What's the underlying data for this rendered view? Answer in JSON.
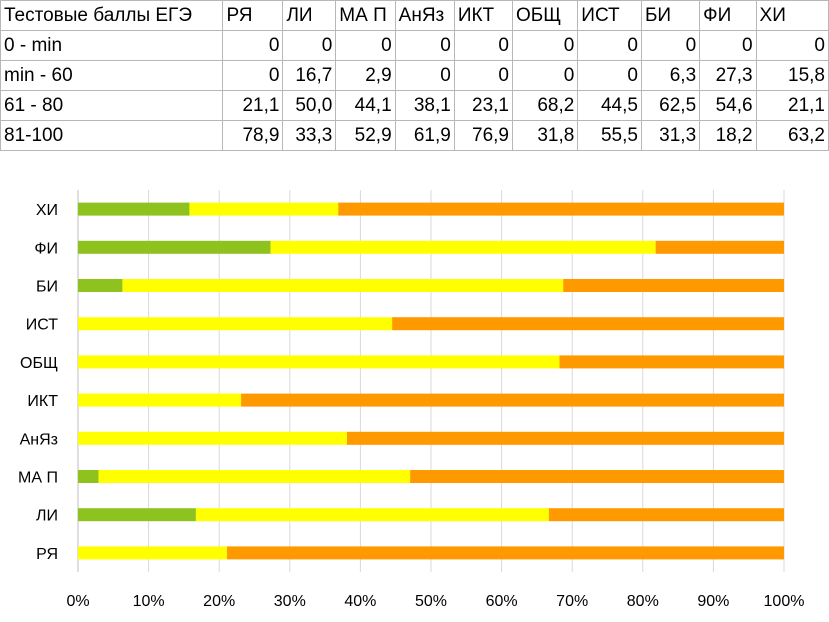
{
  "table": {
    "corner": "Тестовые баллы ЕГЭ",
    "columns": [
      "РЯ",
      "ЛИ",
      "МА П",
      "АнЯз",
      "ИКТ",
      "ОБЩ",
      "ИСТ",
      "БИ",
      "ФИ",
      "ХИ"
    ],
    "rows": [
      {
        "label": "0 - min",
        "values": [
          "0",
          "0",
          "0",
          "0",
          "0",
          "0",
          "0",
          "0",
          "0",
          "0"
        ]
      },
      {
        "label": "min - 60",
        "values": [
          "0",
          "16,7",
          "2,9",
          "0",
          "0",
          "0",
          "0",
          "6,3",
          "27,3",
          "15,8"
        ]
      },
      {
        "label": "61 - 80",
        "values": [
          "21,1",
          "50,0",
          "44,1",
          "38,1",
          "23,1",
          "68,2",
          "44,5",
          "62,5",
          "54,6",
          "21,1"
        ]
      },
      {
        "label": "81-100",
        "values": [
          "78,9",
          "33,3",
          "52,9",
          "61,9",
          "76,9",
          "31,8",
          "55,5",
          "31,3",
          "18,2",
          "63,2"
        ]
      }
    ]
  },
  "chart_data": {
    "type": "bar",
    "orientation": "horizontal",
    "stacked": "percent",
    "categories": [
      "РЯ",
      "ЛИ",
      "МА П",
      "АнЯз",
      "ИКТ",
      "ОБЩ",
      "ИСТ",
      "БИ",
      "ФИ",
      "ХИ"
    ],
    "series": [
      {
        "color": "#8dc21f",
        "values": [
          0,
          16.7,
          2.9,
          0,
          0,
          0,
          0,
          6.3,
          27.3,
          15.8
        ]
      },
      {
        "color": "#ffff00",
        "values": [
          21.1,
          50.0,
          44.1,
          38.1,
          23.1,
          68.2,
          44.5,
          62.5,
          54.6,
          21.1
        ]
      },
      {
        "color": "#ff9900",
        "values": [
          78.9,
          33.3,
          52.9,
          61.9,
          76.9,
          31.8,
          55.5,
          31.3,
          18.2,
          63.2
        ]
      }
    ],
    "xlim": [
      0,
      100
    ],
    "xticks": [
      "0%",
      "10%",
      "20%",
      "30%",
      "40%",
      "50%",
      "60%",
      "70%",
      "80%",
      "90%",
      "100%"
    ],
    "grid": true,
    "gridline_color": "#d9d9d9",
    "legend": "none"
  }
}
